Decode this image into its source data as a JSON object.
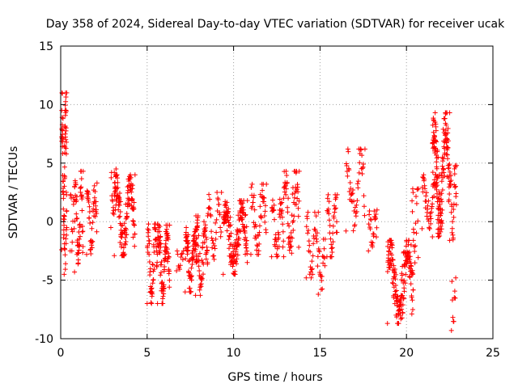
{
  "chart_data": {
    "type": "scatter",
    "title": "Day 358 of 2024, Sidereal Day-to-day VTEC variation (SDTVAR) for receiver ucak",
    "xlabel": "GPS time / hours",
    "ylabel": "SDTVAR / TECUs",
    "xlim": [
      0,
      25
    ],
    "ylim": [
      -10,
      15
    ],
    "xticks": [
      0,
      5,
      10,
      15,
      20,
      25
    ],
    "yticks": [
      -10,
      -5,
      0,
      5,
      10,
      15
    ],
    "grid": true,
    "marker": "+",
    "color": "#ff0000",
    "series": [
      {
        "name": "SDTVAR",
        "clusters": [
          {
            "x0": 0.05,
            "x1": 0.35,
            "y": [
              -2.4,
              11.0
            ],
            "n": 70
          },
          {
            "x0": 0.2,
            "x1": 0.35,
            "y": [
              -4.5,
              -0.5
            ],
            "n": 12
          },
          {
            "x0": 0.55,
            "x1": 0.8,
            "y": [
              -2.5,
              3.0
            ],
            "n": 14
          },
          {
            "x0": 0.8,
            "x1": 1.3,
            "y": [
              -4.3,
              4.3
            ],
            "n": 55
          },
          {
            "x0": 1.5,
            "x1": 2.1,
            "y": [
              -2.8,
              3.3
            ],
            "n": 45
          },
          {
            "x0": 2.9,
            "x1": 3.2,
            "y": [
              -0.5,
              4.5
            ],
            "n": 16
          },
          {
            "x0": 3.1,
            "x1": 4.3,
            "y": [
              -2.9,
              4.0
            ],
            "n": 130
          },
          {
            "x0": 5.0,
            "x1": 5.6,
            "y": [
              -7.0,
              -0.2
            ],
            "n": 55
          },
          {
            "x0": 5.6,
            "x1": 6.3,
            "y": [
              -7.0,
              -0.3
            ],
            "n": 90
          },
          {
            "x0": 6.7,
            "x1": 7.1,
            "y": [
              -4.2,
              -2.5
            ],
            "n": 12
          },
          {
            "x0": 7.2,
            "x1": 7.9,
            "y": [
              -6.0,
              -0.5
            ],
            "n": 80
          },
          {
            "x0": 7.8,
            "x1": 8.5,
            "y": [
              -6.3,
              0.5
            ],
            "n": 60
          },
          {
            "x0": 8.5,
            "x1": 9.3,
            "y": [
              -3.5,
              2.5
            ],
            "n": 35
          },
          {
            "x0": 9.4,
            "x1": 10.8,
            "y": [
              -4.5,
              1.8
            ],
            "n": 150
          },
          {
            "x0": 11.0,
            "x1": 11.9,
            "y": [
              -2.8,
              3.2
            ],
            "n": 50
          },
          {
            "x0": 12.2,
            "x1": 12.9,
            "y": [
              -3.0,
              2.0
            ],
            "n": 45
          },
          {
            "x0": 12.9,
            "x1": 13.8,
            "y": [
              -3.0,
              4.3
            ],
            "n": 60
          },
          {
            "x0": 14.2,
            "x1": 14.9,
            "y": [
              -4.8,
              0.8
            ],
            "n": 35
          },
          {
            "x0": 14.9,
            "x1": 15.3,
            "y": [
              -6.2,
              -1.5
            ],
            "n": 20
          },
          {
            "x0": 15.4,
            "x1": 16.0,
            "y": [
              -3.0,
              2.3
            ],
            "n": 35
          },
          {
            "x0": 16.5,
            "x1": 17.6,
            "y": [
              -0.8,
              6.2
            ],
            "n": 50
          },
          {
            "x0": 17.8,
            "x1": 18.3,
            "y": [
              -2.5,
              1.0
            ],
            "n": 25
          },
          {
            "x0": 18.9,
            "x1": 20.4,
            "y": [
              -8.7,
              -1.6
            ],
            "n": 170
          },
          {
            "x0": 20.3,
            "x1": 20.7,
            "y": [
              -4.5,
              2.8
            ],
            "n": 20
          },
          {
            "x0": 20.9,
            "x1": 21.9,
            "y": [
              -0.6,
              4.0
            ],
            "n": 55
          },
          {
            "x0": 21.5,
            "x1": 22.5,
            "y": [
              -1.3,
              9.3
            ],
            "n": 150
          },
          {
            "x0": 22.5,
            "x1": 22.9,
            "y": [
              -1.6,
              4.8
            ],
            "n": 30
          },
          {
            "x0": 22.6,
            "x1": 22.85,
            "y": [
              -9.3,
              -4.8
            ],
            "n": 10
          }
        ]
      }
    ]
  }
}
